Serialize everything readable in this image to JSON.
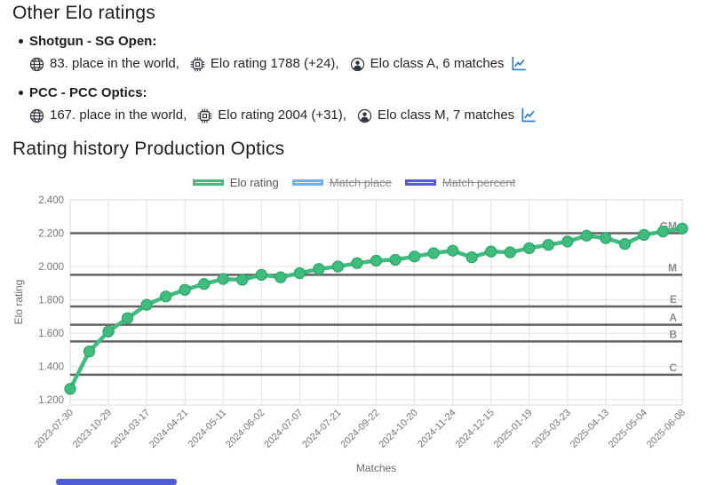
{
  "header": {
    "title": "Other Elo ratings"
  },
  "ratings": [
    {
      "title": "Shotgun - SG Open:",
      "place": "83. place in the world,",
      "rating": "Elo rating 1788 (+24),",
      "class_info": "Elo class A, 6 matches"
    },
    {
      "title": "PCC - PCC Optics:",
      "place": "167. place in the world,",
      "rating": "Elo rating 2004 (+31),",
      "class_info": "Elo class M, 7 matches"
    }
  ],
  "icons": {
    "place": "globe-icon",
    "rating": "cpu-icon",
    "class": "person-icon",
    "history_link": "line-chart-icon"
  },
  "history": {
    "title": "Rating history Production Optics"
  },
  "legend": [
    {
      "label": "Elo rating",
      "color": "#3fbc7e",
      "disabled": false
    },
    {
      "label": "Match place",
      "color": "#66b4f5",
      "disabled": true
    },
    {
      "label": "Match percent",
      "color": "#5757e0",
      "disabled": true
    }
  ],
  "chart_data": {
    "type": "line",
    "title": "Rating history Production Optics",
    "xlabel": "Matches",
    "ylabel": "Elo rating",
    "ylim": [
      1168,
      2400
    ],
    "grid": true,
    "legend_position": "top",
    "y_ticks": [
      {
        "label": "2.400",
        "value": 2400
      },
      {
        "label": "2.200",
        "value": 2200
      },
      {
        "label": "2.000",
        "value": 2000
      },
      {
        "label": "1.800",
        "value": 1800
      },
      {
        "label": "1.600",
        "value": 1600
      },
      {
        "label": "1.400",
        "value": 1400
      },
      {
        "label": "1.200",
        "value": 1200
      }
    ],
    "x_tick_labels": [
      "2023-07-30",
      "2023-10-29",
      "2024-03-17",
      "2024-04-21",
      "2024-05-11",
      "2024-06-02",
      "2024-07-07",
      "2024-07-21",
      "2024-09-22",
      "2024-10-20",
      "2024-11-24",
      "2024-12-15",
      "2025-01-19",
      "2025-03-23",
      "2025-04-13",
      "2025-05-04",
      "2025-06-08"
    ],
    "x_labels_every_n_points": 2,
    "class_lines": [
      {
        "label": "GM",
        "value": 2200
      },
      {
        "label": "M",
        "value": 1950
      },
      {
        "label": "E",
        "value": 1760
      },
      {
        "label": "A",
        "value": 1650
      },
      {
        "label": "B",
        "value": 1550
      },
      {
        "label": "C",
        "value": 1350
      }
    ],
    "series": [
      {
        "name": "Elo rating",
        "color": "#3fbc7e",
        "values": [
          1265,
          1490,
          1610,
          1690,
          1770,
          1820,
          1860,
          1895,
          1925,
          1920,
          1950,
          1935,
          1960,
          1985,
          2000,
          2020,
          2035,
          2040,
          2060,
          2080,
          2095,
          2055,
          2090,
          2085,
          2110,
          2130,
          2150,
          2185,
          2170,
          2135,
          2190,
          2210,
          2228
        ]
      }
    ]
  }
}
